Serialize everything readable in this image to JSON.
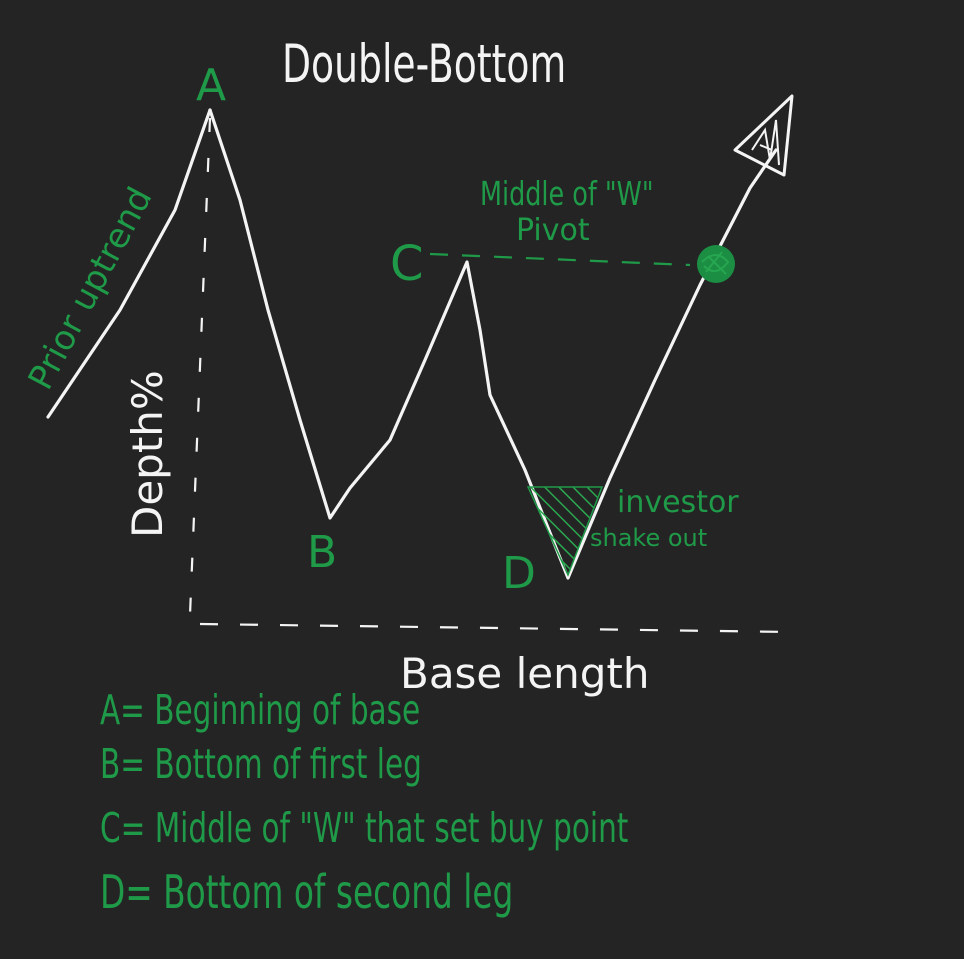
{
  "title": "Double-Bottom",
  "points": {
    "a": "A",
    "b": "B",
    "c": "C",
    "d": "D"
  },
  "annotations": {
    "prior_uptrend": "Prior uptrend",
    "depth": "Depth%",
    "pivot_line1": "Middle of \"W\"",
    "pivot_line2": "Pivot",
    "shakeout_line1": "investor",
    "shakeout_line2": "shake out",
    "base_length": "Base length"
  },
  "legend": [
    "A= Beginning of base",
    "B= Bottom of first leg",
    "C= Middle of \"W\" that set buy point",
    "D= Bottom of second leg"
  ],
  "colors": {
    "background": "#242424",
    "chalk": "#f4f4f4",
    "green": "#1f9a48",
    "green_fill": "#2aa84f"
  }
}
